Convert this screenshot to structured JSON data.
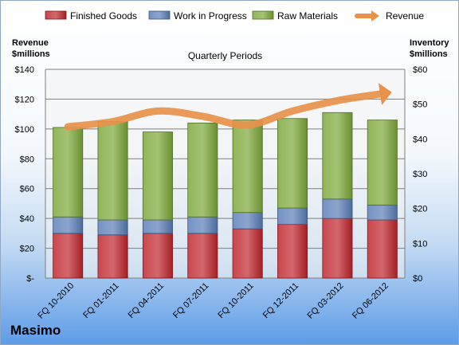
{
  "company": "Masimo",
  "chart_data": {
    "type": "bar",
    "title": "Quarterly Periods",
    "stacked": true,
    "categories": [
      "FQ 10-2010",
      "FQ 01-2011",
      "FQ 04-2011",
      "FQ 07-2011",
      "FQ 10-2011",
      "FQ 12-2011",
      "FQ 03-2012",
      "FQ 06-2012"
    ],
    "series": [
      {
        "name": "Finished Goods",
        "axis": "left",
        "color": "#c0262d",
        "values": [
          30,
          29,
          30,
          30,
          33,
          36,
          40,
          39
        ]
      },
      {
        "name": "Work in Progress",
        "axis": "left",
        "color": "#5b7fb8",
        "values": [
          11,
          10,
          9,
          11,
          11,
          11,
          13,
          10
        ]
      },
      {
        "name": "Raw Materials",
        "axis": "left",
        "color": "#7da83a",
        "values": [
          60,
          66,
          59,
          63,
          62,
          60,
          58,
          57
        ]
      },
      {
        "name": "Revenue",
        "type": "line",
        "axis": "right",
        "color": "#e8914a",
        "values": [
          43.5,
          45,
          48,
          46.5,
          44,
          48,
          51,
          53
        ]
      }
    ],
    "y_left": {
      "label_line1": "Revenue",
      "label_line2": "$millions",
      "ylim": [
        0,
        140
      ],
      "ticks": [
        "$-",
        "$20",
        "$40",
        "$60",
        "$80",
        "$100",
        "$120",
        "$140"
      ]
    },
    "y_right": {
      "label_line1": "Inventory",
      "label_line2": "$millions",
      "ylim": [
        0,
        60
      ],
      "ticks": [
        "$0",
        "$10",
        "$20",
        "$30",
        "$40",
        "$50",
        "$60"
      ]
    },
    "grid": "major-y",
    "legend_position": "top"
  }
}
